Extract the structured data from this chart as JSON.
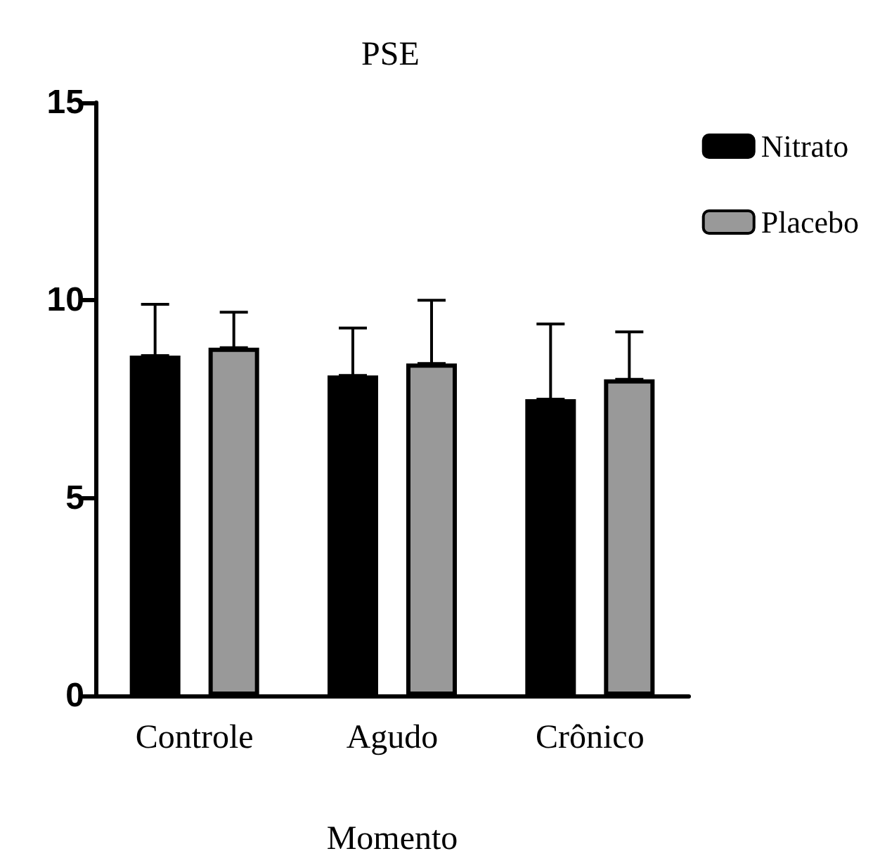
{
  "chart_data": {
    "type": "bar",
    "title": "PSE",
    "xlabel": "Momento",
    "categories": [
      "Controle",
      "Agudo",
      "Crônico"
    ],
    "series": [
      {
        "name": "Nitrato",
        "color": "#000000",
        "values": [
          8.6,
          8.1,
          7.5
        ],
        "errors": [
          [
            8.6,
            9.9
          ],
          [
            8.1,
            9.3
          ],
          [
            7.5,
            9.4
          ]
        ]
      },
      {
        "name": "Placebo",
        "color": "#999999",
        "values": [
          8.8,
          8.4,
          8.0
        ],
        "errors": [
          [
            8.8,
            9.7
          ],
          [
            8.4,
            10.0
          ],
          [
            8.0,
            9.2
          ]
        ]
      }
    ],
    "ylim": [
      0,
      15
    ],
    "yticks": [
      0,
      5,
      10,
      15
    ],
    "grid": false,
    "legend": "top right"
  }
}
